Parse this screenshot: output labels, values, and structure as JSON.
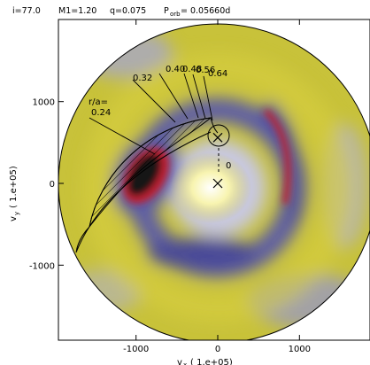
{
  "chart_data": {
    "type": "heatmap",
    "title": {
      "incl_label": "i=77.0",
      "m1_label": "M1=1.20",
      "q_label": "q=0.075",
      "porb_prefix": "P",
      "porb_sub": "orb",
      "porb_value": "= 0.05660d"
    },
    "xlabel": "v",
    "xlabel_sub": "x",
    "xlabel_unit": "( 1.e+05)",
    "ylabel": "v",
    "ylabel_sub": "y",
    "ylabel_unit": "( 1.e+05)",
    "xlim": [
      -1950,
      1950
    ],
    "ylim": [
      -1950,
      1950
    ],
    "x_ticks": [
      -1000,
      0,
      1000
    ],
    "x_tick_labels": [
      "-1000",
      "0",
      "1000"
    ],
    "y_ticks": [
      -1000,
      0,
      1000
    ],
    "y_tick_labels": [
      "-1000",
      "0",
      "1000"
    ],
    "colors": {
      "background": "#c8c23a",
      "bright": "#ffffe6",
      "trough": "#5050a0",
      "lowest": "#141414",
      "spot": "#c0202a",
      "pale": "#b8b8d8"
    },
    "markers": {
      "primary_cross": [
        0,
        0
      ],
      "secondary_cross": [
        0,
        560
      ],
      "center_label": "0"
    },
    "ballistic_stream": {
      "r_over_a_label": "r/a=",
      "labels": [
        "0.24",
        "0.32",
        "0.40",
        "0.48",
        "0.56",
        "0.64"
      ]
    }
  }
}
